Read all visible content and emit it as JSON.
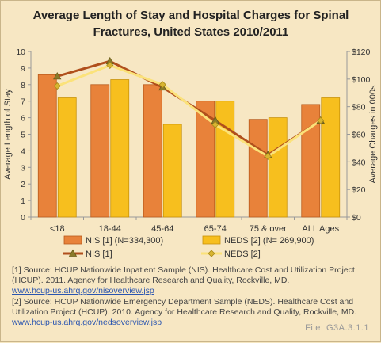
{
  "chart_data": {
    "type": "bar",
    "title": [
      "Average Length of Stay and Hospital Charges for Spinal",
      "Fractures, United States 2010/2011"
    ],
    "categories": [
      "<18",
      "18-44",
      "45-64",
      "65-74",
      "75 & over",
      "ALL Ages"
    ],
    "y_left": {
      "label": "Average Length of Stay",
      "ylim": [
        0,
        10
      ],
      "ticks": [
        "0",
        "1",
        "2",
        "3",
        "4",
        "5",
        "6",
        "7",
        "8",
        "9",
        "10"
      ]
    },
    "y_right": {
      "label": "Average Charges in 000s",
      "ylim": [
        0,
        120
      ],
      "ticks": [
        "$0",
        "$20",
        "$40",
        "$60",
        "$80",
        "$100",
        "$120"
      ]
    },
    "bar_series": [
      {
        "name": "NIS [1] (N=334,300)",
        "values": [
          8.6,
          8.0,
          8.0,
          7.0,
          5.9,
          6.8
        ],
        "color": "#e8823a",
        "edge": "#b85a1c"
      },
      {
        "name": "NEDS [2] (N= 269,900)",
        "values": [
          7.2,
          8.3,
          5.6,
          7.0,
          6.0,
          7.2
        ],
        "color": "#f7bf1e",
        "edge": "#c8920a"
      }
    ],
    "line_series": [
      {
        "name": "NIS [1]",
        "values": [
          102,
          113,
          94,
          70,
          45,
          70
        ],
        "color": "#b04f1c",
        "marker": "triangle"
      },
      {
        "name": "NEDS [2]",
        "values": [
          95,
          110,
          96,
          67,
          44,
          70
        ],
        "color": "#fbe27a",
        "marker": "diamond"
      }
    ],
    "legend_position": "bottom",
    "grid": false
  },
  "sources": {
    "source1_text": "[1] Source: HCUP Nationwide Inpatient Sample (NIS). Healthcare Cost and Utilization Project (HCUP). 2011. Agency for Healthcare Research and Quality, Rockville, MD.",
    "source1_link": "www.hcup-us.ahrq.gov/nisoverview.jsp",
    "source2_text": "[2] Source: HCUP Nationwide Emergency Department Sample (NEDS). Healthcare Cost and Utilization Project (HCUP). 2010. Agency for Healthcare Research and Quality, Rockville, MD.",
    "source2_link": "www.hcup-us.ahrq.gov/nedsoverview.jsp"
  },
  "file_id": "File: G3A.3.1.1"
}
